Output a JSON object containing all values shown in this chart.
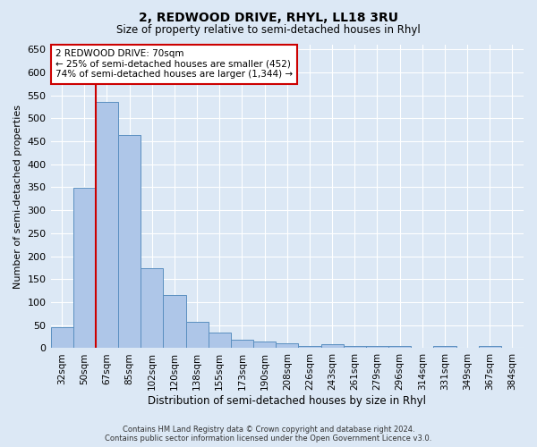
{
  "title": "2, REDWOOD DRIVE, RHYL, LL18 3RU",
  "subtitle": "Size of property relative to semi-detached houses in Rhyl",
  "xlabel": "Distribution of semi-detached houses by size in Rhyl",
  "ylabel": "Number of semi-detached properties",
  "categories": [
    "32sqm",
    "50sqm",
    "67sqm",
    "85sqm",
    "102sqm",
    "120sqm",
    "138sqm",
    "155sqm",
    "173sqm",
    "190sqm",
    "208sqm",
    "226sqm",
    "243sqm",
    "261sqm",
    "279sqm",
    "296sqm",
    "314sqm",
    "331sqm",
    "349sqm",
    "367sqm",
    "384sqm"
  ],
  "values": [
    46,
    348,
    535,
    463,
    174,
    115,
    58,
    34,
    18,
    15,
    10,
    4,
    9,
    4,
    5,
    5,
    0,
    5,
    0,
    5,
    0
  ],
  "bar_color": "#aec6e8",
  "bar_edge_color": "#5a8fc0",
  "property_line_index": 2,
  "annotation_title": "2 REDWOOD DRIVE: 70sqm",
  "annotation_line1": "← 25% of semi-detached houses are smaller (452)",
  "annotation_line2": "74% of semi-detached houses are larger (1,344) →",
  "annotation_box_color": "#ffffff",
  "annotation_box_edge": "#cc0000",
  "property_line_color": "#cc0000",
  "ylim": [
    0,
    660
  ],
  "yticks": [
    0,
    50,
    100,
    150,
    200,
    250,
    300,
    350,
    400,
    450,
    500,
    550,
    600,
    650
  ],
  "background_color": "#dce8f5",
  "grid_color": "#ffffff",
  "footer_line1": "Contains HM Land Registry data © Crown copyright and database right 2024.",
  "footer_line2": "Contains public sector information licensed under the Open Government Licence v3.0."
}
